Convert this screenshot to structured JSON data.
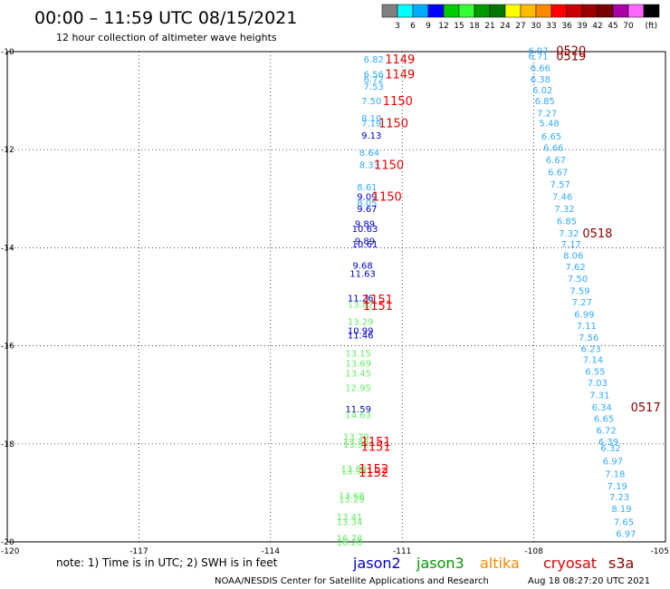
{
  "header": {
    "title": "00:00 – 11:59 UTC 08/15/2021",
    "subtitle": "12 hour collection of altimeter wave heights"
  },
  "colorbar": {
    "unit": "(ft)",
    "ticks": [
      "3",
      "6",
      "9",
      "12",
      "15",
      "18",
      "21",
      "24",
      "27",
      "30",
      "33",
      "36",
      "39",
      "42",
      "45",
      "70"
    ],
    "colors": [
      "#808080",
      "#00ffff",
      "#00aaff",
      "#0000ff",
      "#00cc00",
      "#33ff33",
      "#009900",
      "#007700",
      "#ffff00",
      "#ffbb00",
      "#ff8800",
      "#ff0000",
      "#cc0000",
      "#990000",
      "#770000",
      "#aa00aa",
      "#ff66ff",
      "#000000"
    ]
  },
  "footer": {
    "note": "note:  1) Time is in UTC;  2) SWH is in feet",
    "legend": [
      {
        "label": "jason2",
        "color": "#0000cc"
      },
      {
        "label": "jason3",
        "color": "#009900"
      },
      {
        "label": "altika",
        "color": "#ff8800"
      },
      {
        "label": "cryosat",
        "color": "#dd0000"
      },
      {
        "label": "s3a",
        "color": "#880000"
      }
    ],
    "credit": "NOAA/NESDIS Center for Satellite Applications and Research",
    "timestamp": "Aug 18 08:27:20 UTC 2021"
  },
  "chart_data": {
    "type": "scatter",
    "title": "12 hour collection of altimeter wave heights",
    "xlabel": "",
    "ylabel": "",
    "xlim": [
      -120,
      -105
    ],
    "ylim": [
      -20,
      -10
    ],
    "x_ticks": [
      "-120",
      "-117",
      "-114",
      "-111",
      "-108",
      "-105"
    ],
    "y_ticks": [
      "-10",
      "-12",
      "-14",
      "-16",
      "-18",
      "-20"
    ],
    "grid": true,
    "points": [
      {
        "x": -111.65,
        "y": -10.15,
        "v": "6.82",
        "c": "#33aaff"
      },
      {
        "x": -111.65,
        "y": -10.45,
        "v": "6.56",
        "c": "#33aaff"
      },
      {
        "x": -111.65,
        "y": -10.55,
        "v": "6.72",
        "c": "#33aaff"
      },
      {
        "x": -111.65,
        "y": -10.7,
        "v": "7.53",
        "c": "#33aaff"
      },
      {
        "x": -111.7,
        "y": -11.0,
        "v": "7.50",
        "c": "#33aaff"
      },
      {
        "x": -111.7,
        "y": -11.35,
        "v": "8.10",
        "c": "#33aaff"
      },
      {
        "x": -111.7,
        "y": -11.45,
        "v": "7.19",
        "c": "#33aaff"
      },
      {
        "x": -111.7,
        "y": -11.7,
        "v": "9.13",
        "c": "#0000cc"
      },
      {
        "x": -111.75,
        "y": -12.05,
        "v": "8.64",
        "c": "#33aaff"
      },
      {
        "x": -111.75,
        "y": -12.3,
        "v": "8.33",
        "c": "#33aaff"
      },
      {
        "x": -111.8,
        "y": -12.75,
        "v": "8.61",
        "c": "#33aaff"
      },
      {
        "x": -111.8,
        "y": -12.95,
        "v": "9.09",
        "c": "#0000cc"
      },
      {
        "x": -111.8,
        "y": -13.08,
        "v": "8.05",
        "c": "#33aaff"
      },
      {
        "x": -111.8,
        "y": -13.2,
        "v": "9.67",
        "c": "#0000cc"
      },
      {
        "x": -111.85,
        "y": -13.5,
        "v": "9.89",
        "c": "#0000cc"
      },
      {
        "x": -111.85,
        "y": -13.6,
        "v": "10.63",
        "c": "#0000cc"
      },
      {
        "x": -111.85,
        "y": -13.85,
        "v": "9.89",
        "c": "#0000cc"
      },
      {
        "x": -111.85,
        "y": -13.92,
        "v": "10.61",
        "c": "#0000cc"
      },
      {
        "x": -111.9,
        "y": -14.35,
        "v": "9.68",
        "c": "#0000cc"
      },
      {
        "x": -111.9,
        "y": -14.52,
        "v": "11.63",
        "c": "#0000cc"
      },
      {
        "x": -111.95,
        "y": -15.02,
        "v": "11.26",
        "c": "#0000cc"
      },
      {
        "x": -111.95,
        "y": -15.15,
        "v": "13.82",
        "c": "#66ee66"
      },
      {
        "x": -111.95,
        "y": -15.5,
        "v": "13.29",
        "c": "#66ee66"
      },
      {
        "x": -111.95,
        "y": -15.68,
        "v": "10.99",
        "c": "#0000cc"
      },
      {
        "x": -111.95,
        "y": -15.78,
        "v": "11.46",
        "c": "#0000cc"
      },
      {
        "x": -112.0,
        "y": -16.15,
        "v": "13.15",
        "c": "#66ee66"
      },
      {
        "x": -112.0,
        "y": -16.35,
        "v": "13.69",
        "c": "#66ee66"
      },
      {
        "x": -112.0,
        "y": -16.55,
        "v": "13.45",
        "c": "#66ee66"
      },
      {
        "x": -112.0,
        "y": -16.85,
        "v": "12.95",
        "c": "#66ee66"
      },
      {
        "x": -112.0,
        "y": -17.28,
        "v": "11.59",
        "c": "#0000cc"
      },
      {
        "x": -112.0,
        "y": -17.4,
        "v": "14.63",
        "c": "#66ee66"
      },
      {
        "x": -112.05,
        "y": -17.85,
        "v": "13.79",
        "c": "#66ee66"
      },
      {
        "x": -112.05,
        "y": -17.95,
        "v": "13.38",
        "c": "#66ee66"
      },
      {
        "x": -112.05,
        "y": -18.0,
        "v": "13.52",
        "c": "#66ee66"
      },
      {
        "x": -112.1,
        "y": -18.5,
        "v": "13.82",
        "c": "#66ee66"
      },
      {
        "x": -112.1,
        "y": -18.55,
        "v": "13.98",
        "c": "#66ee66"
      },
      {
        "x": -112.15,
        "y": -19.05,
        "v": "13.68",
        "c": "#66ee66"
      },
      {
        "x": -112.15,
        "y": -19.12,
        "v": "13.29",
        "c": "#66ee66"
      },
      {
        "x": -112.2,
        "y": -19.48,
        "v": "13.41",
        "c": "#66ee66"
      },
      {
        "x": -112.2,
        "y": -19.58,
        "v": "13.34",
        "c": "#66ee66"
      },
      {
        "x": -112.2,
        "y": -19.92,
        "v": "16.78",
        "c": "#66ee66"
      },
      {
        "x": -112.2,
        "y": -20.0,
        "v": "16.20",
        "c": "#66ee66"
      },
      {
        "x": -107.9,
        "y": -9.97,
        "v": "6.97",
        "c": "#33aaff"
      },
      {
        "x": -107.9,
        "y": -10.08,
        "v": "6.71",
        "c": "#33aaff"
      },
      {
        "x": -107.85,
        "y": -10.32,
        "v": "6.66",
        "c": "#33aaff"
      },
      {
        "x": -107.85,
        "y": -10.55,
        "v": "6.38",
        "c": "#33aaff"
      },
      {
        "x": -107.8,
        "y": -10.78,
        "v": "6.02",
        "c": "#33aaff"
      },
      {
        "x": -107.75,
        "y": -11.0,
        "v": "6.85",
        "c": "#33aaff"
      },
      {
        "x": -107.7,
        "y": -11.25,
        "v": "7.27",
        "c": "#33aaff"
      },
      {
        "x": -107.65,
        "y": -11.45,
        "v": "5.48",
        "c": "#33aaff"
      },
      {
        "x": -107.6,
        "y": -11.72,
        "v": "6.65",
        "c": "#33aaff"
      },
      {
        "x": -107.55,
        "y": -11.95,
        "v": "6.66",
        "c": "#33aaff"
      },
      {
        "x": -107.5,
        "y": -12.2,
        "v": "6.67",
        "c": "#33aaff"
      },
      {
        "x": -107.45,
        "y": -12.45,
        "v": "6.67",
        "c": "#33aaff"
      },
      {
        "x": -107.4,
        "y": -12.7,
        "v": "7.57",
        "c": "#33aaff"
      },
      {
        "x": -107.35,
        "y": -12.95,
        "v": "7.46",
        "c": "#33aaff"
      },
      {
        "x": -107.3,
        "y": -13.2,
        "v": "7.32",
        "c": "#33aaff"
      },
      {
        "x": -107.25,
        "y": -13.45,
        "v": "6.85",
        "c": "#33aaff"
      },
      {
        "x": -107.2,
        "y": -13.7,
        "v": "7.32",
        "c": "#33aaff"
      },
      {
        "x": -107.15,
        "y": -13.92,
        "v": "7.17",
        "c": "#33aaff"
      },
      {
        "x": -107.1,
        "y": -14.15,
        "v": "8.06",
        "c": "#33aaff"
      },
      {
        "x": -107.05,
        "y": -14.38,
        "v": "7.62",
        "c": "#33aaff"
      },
      {
        "x": -107.0,
        "y": -14.62,
        "v": "7.50",
        "c": "#33aaff"
      },
      {
        "x": -106.95,
        "y": -14.87,
        "v": "7.59",
        "c": "#33aaff"
      },
      {
        "x": -106.9,
        "y": -15.1,
        "v": "7.27",
        "c": "#33aaff"
      },
      {
        "x": -106.85,
        "y": -15.35,
        "v": "6.99",
        "c": "#33aaff"
      },
      {
        "x": -106.8,
        "y": -15.58,
        "v": "7.11",
        "c": "#33aaff"
      },
      {
        "x": -106.75,
        "y": -15.82,
        "v": "7.56",
        "c": "#33aaff"
      },
      {
        "x": -106.7,
        "y": -16.05,
        "v": "6.23",
        "c": "#33aaff"
      },
      {
        "x": -106.65,
        "y": -16.28,
        "v": "7.14",
        "c": "#33aaff"
      },
      {
        "x": -106.6,
        "y": -16.52,
        "v": "6.55",
        "c": "#33aaff"
      },
      {
        "x": -106.55,
        "y": -16.75,
        "v": "7.03",
        "c": "#33aaff"
      },
      {
        "x": -106.5,
        "y": -17.0,
        "v": "7.31",
        "c": "#33aaff"
      },
      {
        "x": -106.45,
        "y": -17.25,
        "v": "6.34",
        "c": "#33aaff"
      },
      {
        "x": -106.4,
        "y": -17.48,
        "v": "6.65",
        "c": "#33aaff"
      },
      {
        "x": -106.35,
        "y": -17.72,
        "v": "6.72",
        "c": "#33aaff"
      },
      {
        "x": -106.3,
        "y": -17.95,
        "v": "6.39",
        "c": "#33aaff"
      },
      {
        "x": -106.25,
        "y": -18.08,
        "v": "6.32",
        "c": "#33aaff"
      },
      {
        "x": -106.2,
        "y": -18.35,
        "v": "6.97",
        "c": "#33aaff"
      },
      {
        "x": -106.15,
        "y": -18.6,
        "v": "7.18",
        "c": "#33aaff"
      },
      {
        "x": -106.1,
        "y": -18.85,
        "v": "7.19",
        "c": "#33aaff"
      },
      {
        "x": -106.05,
        "y": -19.08,
        "v": "7.23",
        "c": "#33aaff"
      },
      {
        "x": -106.0,
        "y": -19.32,
        "v": "8.19",
        "c": "#33aaff"
      },
      {
        "x": -105.95,
        "y": -19.58,
        "v": "7.65",
        "c": "#33aaff"
      },
      {
        "x": -105.9,
        "y": -19.82,
        "v": "6.97",
        "c": "#33aaff"
      }
    ],
    "time_labels": [
      {
        "x": -111.05,
        "y": -10.15,
        "t": "1149",
        "c": "#ee0000"
      },
      {
        "x": -111.05,
        "y": -10.45,
        "t": "1149",
        "c": "#ee0000"
      },
      {
        "x": -111.1,
        "y": -11.0,
        "t": "1150",
        "c": "#ee0000"
      },
      {
        "x": -111.2,
        "y": -11.45,
        "t": "1150",
        "c": "#ee0000"
      },
      {
        "x": -111.3,
        "y": -12.3,
        "t": "1150",
        "c": "#ee0000"
      },
      {
        "x": -111.35,
        "y": -12.95,
        "t": "1150",
        "c": "#ee0000"
      },
      {
        "x": -111.55,
        "y": -15.05,
        "t": "1151",
        "c": "#ee0000"
      },
      {
        "x": -111.55,
        "y": -15.18,
        "t": "1151",
        "c": "#ee0000"
      },
      {
        "x": -111.6,
        "y": -17.95,
        "t": "1151",
        "c": "#ee0000"
      },
      {
        "x": -111.6,
        "y": -18.05,
        "t": "1151",
        "c": "#ee0000"
      },
      {
        "x": -111.65,
        "y": -18.5,
        "t": "1152",
        "c": "#ee0000"
      },
      {
        "x": -111.65,
        "y": -18.58,
        "t": "1152",
        "c": "#ee0000"
      },
      {
        "x": -107.15,
        "y": -9.97,
        "t": "0520",
        "c": "#880000"
      },
      {
        "x": -107.15,
        "y": -10.08,
        "t": "0519",
        "c": "#880000"
      },
      {
        "x": -106.55,
        "y": -13.7,
        "t": "0518",
        "c": "#880000"
      },
      {
        "x": -105.45,
        "y": -17.25,
        "t": "0517",
        "c": "#880000"
      }
    ]
  }
}
